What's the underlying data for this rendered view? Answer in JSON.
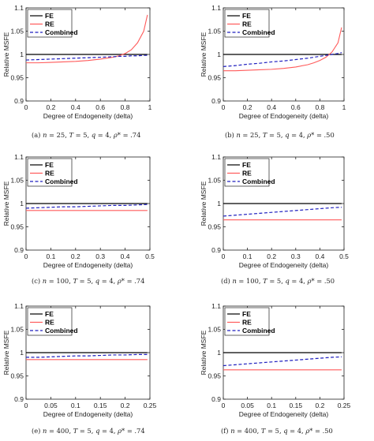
{
  "figure": {
    "panels": [
      {
        "id": "a",
        "caption": "(a) n = 25, T = 5, q = 4, ρ* = .74",
        "caption_parts": {
          "label": "(a)",
          "n": "25",
          "rho": ".74"
        }
      },
      {
        "id": "b",
        "caption": "(b) n = 25, T = 5, q = 4, ρ* = .50",
        "caption_parts": {
          "label": "(b)",
          "n": "25",
          "rho": ".50"
        }
      },
      {
        "id": "c",
        "caption": "(c) n = 100, T = 5, q = 4, ρ* = .74",
        "caption_parts": {
          "label": "(c)",
          "n": "100",
          "rho": ".74"
        }
      },
      {
        "id": "d",
        "caption": "(d) n = 100, T = 5, q = 4, ρ* = .50",
        "caption_parts": {
          "label": "(d)",
          "n": "100",
          "rho": ".50"
        }
      },
      {
        "id": "e",
        "caption": "(e) n = 400, T = 5, q = 4, ρ* = .74",
        "caption_parts": {
          "label": "(e)",
          "n": "400",
          "rho": ".74"
        }
      },
      {
        "id": "f",
        "caption": "(f) n = 400, T = 5, q = 4, ρ* = .50",
        "caption_parts": {
          "label": "(f)",
          "n": "400",
          "rho": ".50"
        }
      }
    ]
  },
  "colors": {
    "FE": "#000000",
    "RE": "#ff5a5a",
    "Combined": "#1f1fbf",
    "axis": "#222222"
  },
  "chart_data": [
    {
      "type": "line",
      "xlabel": "Degree of Endogeneity (delta)",
      "ylabel": "Relative MSFE",
      "xlim": [
        0,
        1
      ],
      "ylim": [
        0.9,
        1.1
      ],
      "xticks": [
        "0",
        "0.2",
        "0.4",
        "0.6",
        "0.8",
        "1"
      ],
      "yticks": [
        "0.9",
        "0.95",
        "1",
        "1.05",
        "1.1"
      ],
      "legend": [
        "FE",
        "RE",
        "Combined"
      ],
      "legend_position": "top-left",
      "x": [
        0,
        0.1,
        0.2,
        0.3,
        0.4,
        0.5,
        0.6,
        0.7,
        0.75,
        0.8,
        0.85,
        0.9,
        0.95,
        0.98
      ],
      "series": [
        {
          "name": "FE",
          "style": "solid",
          "values": [
            1,
            1,
            1,
            1,
            1,
            1,
            1,
            1,
            1,
            1,
            1,
            1,
            1,
            1
          ]
        },
        {
          "name": "RE",
          "style": "solid",
          "values": [
            0.982,
            0.982,
            0.983,
            0.984,
            0.985,
            0.987,
            0.99,
            0.994,
            0.997,
            1.002,
            1.01,
            1.025,
            1.05,
            1.085
          ]
        },
        {
          "name": "Combined",
          "style": "dashed",
          "values": [
            0.988,
            0.989,
            0.99,
            0.991,
            0.992,
            0.993,
            0.994,
            0.995,
            0.996,
            0.996,
            0.997,
            0.997,
            0.998,
            0.998
          ]
        }
      ]
    },
    {
      "type": "line",
      "xlabel": "Degree of Endogeneity (delta)",
      "ylabel": "Relative MSFE",
      "xlim": [
        0,
        1
      ],
      "ylim": [
        0.9,
        1.1
      ],
      "xticks": [
        "0",
        "0.2",
        "0.4",
        "0.6",
        "0.8",
        "1"
      ],
      "yticks": [
        "0.9",
        "0.95",
        "1",
        "1.05",
        "1.1"
      ],
      "legend": [
        "FE",
        "RE",
        "Combined"
      ],
      "legend_position": "top-left",
      "x": [
        0,
        0.1,
        0.2,
        0.3,
        0.4,
        0.5,
        0.6,
        0.7,
        0.75,
        0.8,
        0.85,
        0.9,
        0.95,
        0.98
      ],
      "series": [
        {
          "name": "FE",
          "style": "solid",
          "values": [
            1,
            1,
            1,
            1,
            1,
            1,
            1,
            1,
            1,
            1,
            1,
            1,
            1,
            1
          ]
        },
        {
          "name": "RE",
          "style": "solid",
          "values": [
            0.965,
            0.965,
            0.966,
            0.967,
            0.968,
            0.97,
            0.973,
            0.978,
            0.982,
            0.987,
            0.994,
            1.005,
            1.025,
            1.058
          ]
        },
        {
          "name": "Combined",
          "style": "dashed",
          "values": [
            0.974,
            0.976,
            0.979,
            0.981,
            0.984,
            0.986,
            0.989,
            0.992,
            0.994,
            0.996,
            0.998,
            1.0,
            1.002,
            1.004
          ]
        }
      ]
    },
    {
      "type": "line",
      "xlabel": "Degree of Endogeneity (delta)",
      "ylabel": "Relative MSFE",
      "xlim": [
        0,
        0.5
      ],
      "ylim": [
        0.9,
        1.1
      ],
      "xticks": [
        "0",
        "0.1",
        "0.2",
        "0.3",
        "0.4",
        "0.5"
      ],
      "yticks": [
        "0.9",
        "0.95",
        "1",
        "1.05",
        "1.1"
      ],
      "legend": [
        "FE",
        "RE",
        "Combined"
      ],
      "legend_position": "top-left",
      "x": [
        0,
        0.05,
        0.1,
        0.15,
        0.2,
        0.25,
        0.3,
        0.35,
        0.4,
        0.45,
        0.49
      ],
      "series": [
        {
          "name": "FE",
          "style": "solid",
          "values": [
            1,
            1,
            1,
            1,
            1,
            1,
            1,
            1,
            1,
            1,
            1
          ]
        },
        {
          "name": "RE",
          "style": "solid",
          "values": [
            0.985,
            0.985,
            0.985,
            0.985,
            0.985,
            0.985,
            0.985,
            0.985,
            0.985,
            0.985,
            0.985
          ]
        },
        {
          "name": "Combined",
          "style": "dashed",
          "values": [
            0.99,
            0.991,
            0.992,
            0.993,
            0.993,
            0.994,
            0.995,
            0.996,
            0.996,
            0.997,
            0.998
          ]
        }
      ]
    },
    {
      "type": "line",
      "xlabel": "Degree of Endogeneity (delta)",
      "ylabel": "Relative MSFE",
      "xlim": [
        0,
        0.5
      ],
      "ylim": [
        0.9,
        1.1
      ],
      "xticks": [
        "0",
        "0.1",
        "0.2",
        "0.3",
        "0.4",
        "0.5"
      ],
      "yticks": [
        "0.9",
        "0.95",
        "1",
        "1.05",
        "1.1"
      ],
      "legend": [
        "FE",
        "RE",
        "Combined"
      ],
      "legend_position": "top-left",
      "x": [
        0,
        0.05,
        0.1,
        0.15,
        0.2,
        0.25,
        0.3,
        0.35,
        0.4,
        0.45,
        0.49
      ],
      "series": [
        {
          "name": "FE",
          "style": "solid",
          "values": [
            1,
            1,
            1,
            1,
            1,
            1,
            1,
            1,
            1,
            1,
            1
          ]
        },
        {
          "name": "RE",
          "style": "solid",
          "values": [
            0.965,
            0.965,
            0.965,
            0.965,
            0.965,
            0.965,
            0.965,
            0.965,
            0.965,
            0.965,
            0.965
          ]
        },
        {
          "name": "Combined",
          "style": "dashed",
          "values": [
            0.973,
            0.975,
            0.977,
            0.979,
            0.981,
            0.983,
            0.985,
            0.987,
            0.989,
            0.991,
            0.992
          ]
        }
      ]
    },
    {
      "type": "line",
      "xlabel": "Degree of Endogeneity (delta)",
      "ylabel": "Relative MSFE",
      "xlim": [
        0,
        0.25
      ],
      "ylim": [
        0.9,
        1.1
      ],
      "xticks": [
        "0",
        "0.05",
        "0.1",
        "0.15",
        "0.2",
        "0.25"
      ],
      "yticks": [
        "0.9",
        "0.95",
        "1",
        "1.05",
        "1.1"
      ],
      "legend": [
        "FE",
        "RE",
        "Combined"
      ],
      "legend_position": "top-left",
      "x": [
        0,
        0.025,
        0.05,
        0.075,
        0.1,
        0.125,
        0.15,
        0.175,
        0.2,
        0.225,
        0.245
      ],
      "series": [
        {
          "name": "FE",
          "style": "solid",
          "values": [
            1,
            1,
            1,
            1,
            1,
            1,
            1,
            1,
            1,
            1,
            1
          ]
        },
        {
          "name": "RE",
          "style": "solid",
          "values": [
            0.985,
            0.985,
            0.985,
            0.985,
            0.985,
            0.985,
            0.985,
            0.985,
            0.985,
            0.985,
            0.985
          ]
        },
        {
          "name": "Combined",
          "style": "dashed",
          "values": [
            0.99,
            0.99,
            0.991,
            0.992,
            0.993,
            0.993,
            0.994,
            0.995,
            0.995,
            0.996,
            0.996
          ]
        }
      ]
    },
    {
      "type": "line",
      "xlabel": "Degree of Endogeneity (delta)",
      "ylabel": "Relative MSFE",
      "xlim": [
        0,
        0.25
      ],
      "ylim": [
        0.9,
        1.1
      ],
      "xticks": [
        "0",
        "0.05",
        "0.1",
        "0.15",
        "0.2",
        "0.25"
      ],
      "yticks": [
        "0.9",
        "0.95",
        "1",
        "1.05",
        "1.1"
      ],
      "legend": [
        "FE",
        "RE",
        "Combined"
      ],
      "legend_position": "top-left",
      "x": [
        0,
        0.025,
        0.05,
        0.075,
        0.1,
        0.125,
        0.15,
        0.175,
        0.2,
        0.225,
        0.245
      ],
      "series": [
        {
          "name": "FE",
          "style": "solid",
          "values": [
            1,
            1,
            1,
            1,
            1,
            1,
            1,
            1,
            1,
            1,
            1
          ]
        },
        {
          "name": "RE",
          "style": "solid",
          "values": [
            0.963,
            0.963,
            0.963,
            0.963,
            0.963,
            0.963,
            0.963,
            0.963,
            0.963,
            0.963,
            0.963
          ]
        },
        {
          "name": "Combined",
          "style": "dashed",
          "values": [
            0.972,
            0.974,
            0.976,
            0.978,
            0.98,
            0.982,
            0.984,
            0.986,
            0.988,
            0.99,
            0.991
          ]
        }
      ]
    }
  ]
}
